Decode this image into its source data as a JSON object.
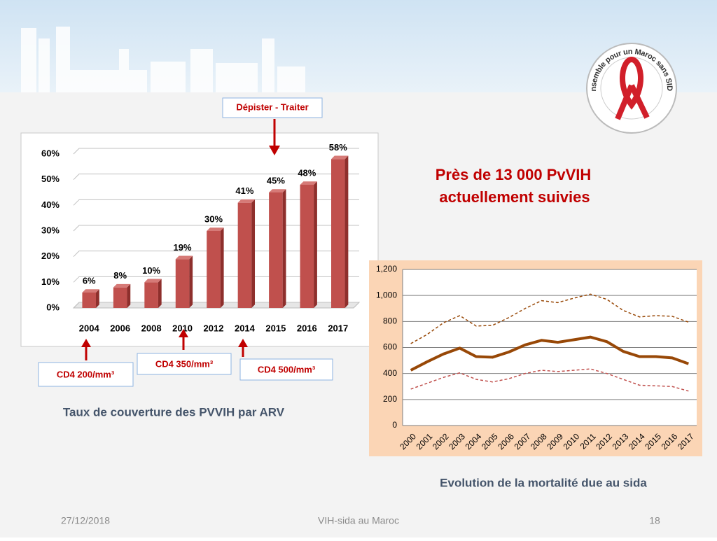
{
  "slide": {
    "headline": [
      "Près de 13 000 PvVIH",
      "actuellement suivies"
    ],
    "logo_text": "Ensemble pour un Maroc sans SIDA",
    "annotations": [
      "Dépister - Traiter",
      "CD4 200/mm³",
      "CD4 350/mm³",
      "CD4 500/mm³"
    ],
    "footer": {
      "date": "27/12/2018",
      "center": "VIH-sida au Maroc",
      "page": "18"
    }
  },
  "chart_data": [
    {
      "type": "bar",
      "title": "Taux de couverture des PVVIH par ARV",
      "categories": [
        "2004",
        "2006",
        "2008",
        "2010",
        "2012",
        "2014",
        "2015",
        "2016",
        "2017"
      ],
      "values": [
        6,
        8,
        10,
        19,
        30,
        41,
        45,
        48,
        58
      ],
      "value_labels": [
        "6%",
        "8%",
        "10%",
        "19%",
        "30%",
        "41%",
        "45%",
        "48%",
        "58%"
      ],
      "color": "#c0504d",
      "ylim": [
        0,
        60
      ],
      "yticks": [
        {
          "value": 0,
          "label": "0%"
        },
        {
          "value": 10,
          "label": "10%"
        },
        {
          "value": 20,
          "label": "20%"
        },
        {
          "value": 30,
          "label": "30%"
        },
        {
          "value": 40,
          "label": "40%"
        },
        {
          "value": 50,
          "label": "50%"
        },
        {
          "value": 60,
          "label": "60%"
        }
      ],
      "grid": true
    },
    {
      "type": "line",
      "title": "Evolution de la mortalité due au sida",
      "categories": [
        "2000",
        "2001",
        "2002",
        "2003",
        "2004",
        "2005",
        "2006",
        "2007",
        "2008",
        "2009",
        "2010",
        "2011",
        "2012",
        "2013",
        "2014",
        "2015",
        "2016",
        "2017"
      ],
      "series": [
        {
          "color": "#984807",
          "dashed": true,
          "values": [
            630,
            700,
            790,
            845,
            765,
            770,
            830,
            900,
            960,
            945,
            980,
            1010,
            970,
            885,
            835,
            845,
            840,
            795
          ]
        },
        {
          "color": "#984807",
          "dashed": false,
          "values": [
            425,
            490,
            550,
            595,
            530,
            525,
            565,
            620,
            655,
            640,
            660,
            680,
            645,
            570,
            530,
            530,
            520,
            475
          ]
        },
        {
          "color": "#c0504d",
          "dashed": true,
          "values": [
            280,
            325,
            370,
            405,
            355,
            335,
            360,
            400,
            425,
            415,
            425,
            435,
            400,
            355,
            310,
            305,
            300,
            265
          ]
        }
      ],
      "ylim": [
        0,
        1200
      ],
      "yticks": [
        0,
        200,
        400,
        600,
        800,
        {
          "value": 1000,
          "label": "1,000"
        },
        {
          "value": 1200,
          "label": "1,200"
        }
      ],
      "grid": true
    }
  ]
}
